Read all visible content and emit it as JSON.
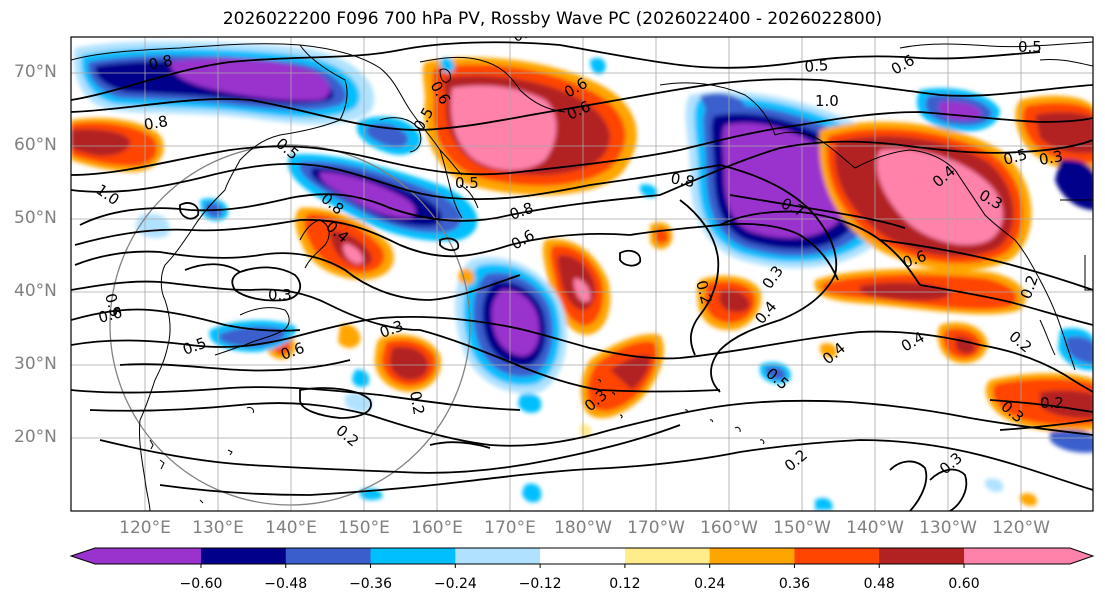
{
  "title": "2026022200 F096 700 hPa PV, Rossby Wave PC (2026022400 - 2026022800)",
  "lat_labels": [
    "70°N",
    "60°N",
    "50°N",
    "40°N",
    "30°N",
    "20°N"
  ],
  "lon_labels": [
    "120°E",
    "130°E",
    "140°E",
    "150°E",
    "160°E",
    "170°E",
    "180°W",
    "170°W",
    "160°W",
    "150°W",
    "140°W",
    "130°W",
    "120°W"
  ],
  "colorbar": {
    "tick_labels": [
      "−0.60",
      "−0.48",
      "−0.36",
      "−0.24",
      "−0.12",
      "0.12",
      "0.24",
      "0.36",
      "0.48",
      "0.60"
    ],
    "colors": [
      "#9a32cd",
      "#00008b",
      "#3a5fcd",
      "#00bfff",
      "#b0e2ff",
      "#ffffff",
      "#ffec8b",
      "#ffa500",
      "#ff4500",
      "#b22222",
      "#ff82ab"
    ]
  },
  "contour_labels": [
    "0.8",
    "0.8",
    "0.8",
    "0.6",
    "0.6",
    "0.5",
    "0.5",
    "0.5",
    "0.5",
    "0.6",
    "1.0",
    "1.0",
    "0.8",
    "0.6",
    "0.8",
    "0.7",
    "0.5",
    "0.4",
    "0.5",
    "0.3",
    "0.6",
    "0.5",
    "0.3",
    "0.6",
    "0.3",
    "0.2",
    "0.2",
    "0.3",
    "0.2",
    "0.4",
    "0.3",
    "0.4",
    "0.5",
    "0.4",
    "0.2",
    "0.6",
    "0.2",
    "0.3",
    "0.2",
    "0.3",
    "0.2",
    "0.3",
    "0.5",
    "0.6",
    "0.5",
    "0.4"
  ]
}
